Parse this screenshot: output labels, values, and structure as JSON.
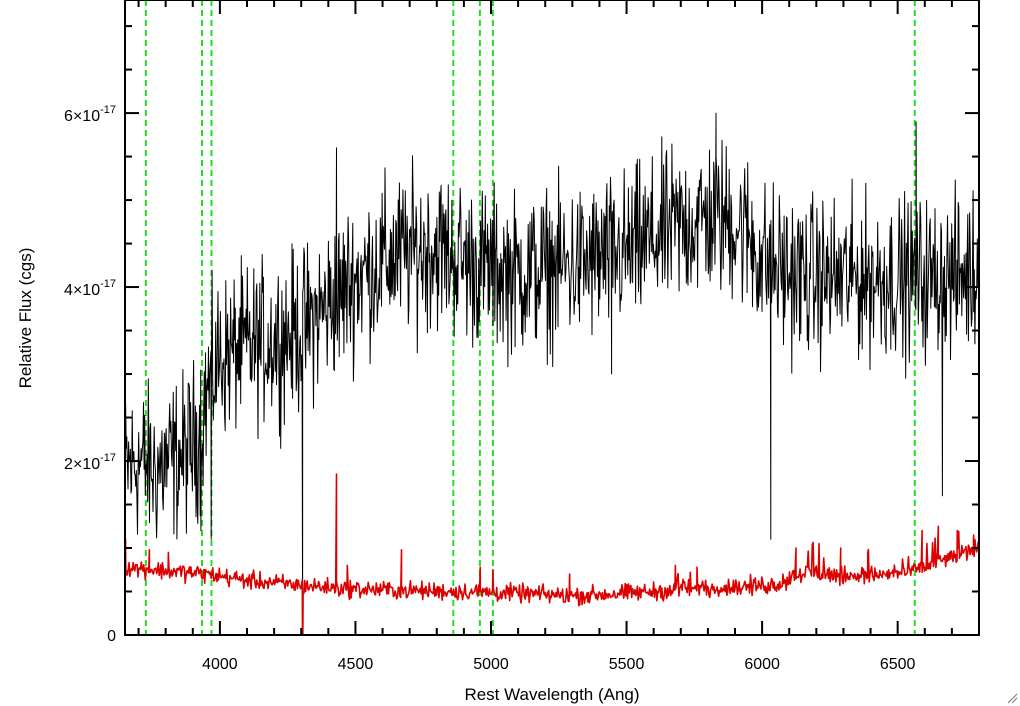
{
  "chart_data": {
    "type": "line",
    "title": "",
    "xlabel": "Rest Wavelength (Ang)",
    "ylabel": "Relative Flux (cgs)",
    "xlim": [
      3650,
      6800
    ],
    "ylim": [
      0,
      7.3e-17
    ],
    "x_ticks": [
      {
        "value": 4000,
        "label": "4000"
      },
      {
        "value": 4500,
        "label": "4500"
      },
      {
        "value": 5000,
        "label": "5000"
      },
      {
        "value": 5500,
        "label": "5500"
      },
      {
        "value": 6000,
        "label": "6000"
      },
      {
        "value": 6500,
        "label": "6500"
      }
    ],
    "y_ticks": [
      {
        "value": 0,
        "mantissa": "0",
        "exponent": ""
      },
      {
        "value": 2e-17,
        "mantissa": "2×10",
        "exponent": "-17"
      },
      {
        "value": 4e-17,
        "mantissa": "4×10",
        "exponent": "-17"
      },
      {
        "value": 6e-17,
        "mantissa": "6×10",
        "exponent": "-17"
      }
    ],
    "grid": false,
    "reference_lines": {
      "color": "#22dd22",
      "style": "dashed",
      "x": [
        3727,
        3934,
        3969,
        4861,
        4959,
        5007,
        6563
      ]
    },
    "series": [
      {
        "color": "#000000",
        "noise_amplitude": 4.5e-18,
        "points": [
          [
            3650,
            1.9e-17
          ],
          [
            3700,
            2e-17
          ],
          [
            3760,
            1.9e-17
          ],
          [
            3820,
            2e-17
          ],
          [
            3880,
            2.1e-17
          ],
          [
            3920,
            2.3e-17
          ],
          [
            3960,
            2.9e-17
          ],
          [
            4000,
            3.2e-17
          ],
          [
            4100,
            3.3e-17
          ],
          [
            4200,
            3.4e-17
          ],
          [
            4300,
            3.5e-17
          ],
          [
            4400,
            3.8e-17
          ],
          [
            4500,
            4.1e-17
          ],
          [
            4600,
            4.3e-17
          ],
          [
            4700,
            4.4e-17
          ],
          [
            4800,
            4.45e-17
          ],
          [
            4900,
            4.3e-17
          ],
          [
            5000,
            4.2e-17
          ],
          [
            5100,
            4.15e-17
          ],
          [
            5200,
            4.2e-17
          ],
          [
            5300,
            4.25e-17
          ],
          [
            5400,
            4.3e-17
          ],
          [
            5500,
            4.4e-17
          ],
          [
            5600,
            4.55e-17
          ],
          [
            5700,
            4.7e-17
          ],
          [
            5800,
            4.8e-17
          ],
          [
            5900,
            4.75e-17
          ],
          [
            5950,
            4.6e-17
          ],
          [
            6000,
            4.3e-17
          ],
          [
            6100,
            4.15e-17
          ],
          [
            6200,
            4.1e-17
          ],
          [
            6300,
            4.1e-17
          ],
          [
            6400,
            4.1e-17
          ],
          [
            6500,
            4.1e-17
          ],
          [
            6600,
            4.1e-17
          ],
          [
            6700,
            4.1e-17
          ],
          [
            6800,
            4.2e-17
          ]
        ],
        "features": [
          [
            4305,
            0.0
          ],
          [
            4430,
            5.6e-17
          ],
          [
            4440,
            3.2e-17
          ],
          [
            6032,
            1.1e-17
          ],
          [
            6568,
            5.9e-17
          ],
          [
            6665,
            1.6e-17
          ],
          [
            5445,
            3e-17
          ],
          [
            5830,
            6e-17
          ],
          [
            3930,
            1.2e-17
          ],
          [
            3968,
            1.1e-17
          ]
        ]
      },
      {
        "color": "#dd0000",
        "noise_amplitude": 5e-19,
        "points": [
          [
            3650,
            7.8e-18
          ],
          [
            3800,
            7.4e-18
          ],
          [
            3950,
            7e-18
          ],
          [
            4100,
            6.3e-18
          ],
          [
            4300,
            5.7e-18
          ],
          [
            4500,
            5.3e-18
          ],
          [
            4700,
            5.1e-18
          ],
          [
            4900,
            5e-18
          ],
          [
            5100,
            4.8e-18
          ],
          [
            5300,
            4.5e-18
          ],
          [
            5500,
            4.8e-18
          ],
          [
            5700,
            5.2e-18
          ],
          [
            5900,
            5.5e-18
          ],
          [
            6050,
            5.8e-18
          ],
          [
            6150,
            7.2e-18
          ],
          [
            6300,
            6.8e-18
          ],
          [
            6500,
            7e-18
          ],
          [
            6600,
            7.8e-18
          ],
          [
            6700,
            9e-18
          ],
          [
            6800,
            1e-17
          ]
        ],
        "features": [
          [
            3652,
            1.1e-17
          ],
          [
            3740,
            9.8e-18
          ],
          [
            3810,
            9.5e-18
          ],
          [
            4305,
            -4e-18
          ],
          [
            4430,
            1.85e-17
          ],
          [
            4470,
            8e-18
          ],
          [
            4670,
            9.8e-18
          ],
          [
            4960,
            7.8e-18
          ],
          [
            5007,
            7.5e-18
          ],
          [
            5290,
            7e-18
          ],
          [
            5680,
            8e-18
          ],
          [
            5760,
            7.8e-18
          ],
          [
            6125,
            1e-17
          ],
          [
            6210,
            1.05e-17
          ],
          [
            6290,
            1e-17
          ],
          [
            6390,
            9.5e-18
          ],
          [
            6540,
            9e-18
          ],
          [
            6590,
            1.2e-17
          ],
          [
            6650,
            1.25e-17
          ],
          [
            6720,
            1.2e-17
          ],
          [
            6780,
            1.15e-17
          ]
        ]
      }
    ]
  }
}
